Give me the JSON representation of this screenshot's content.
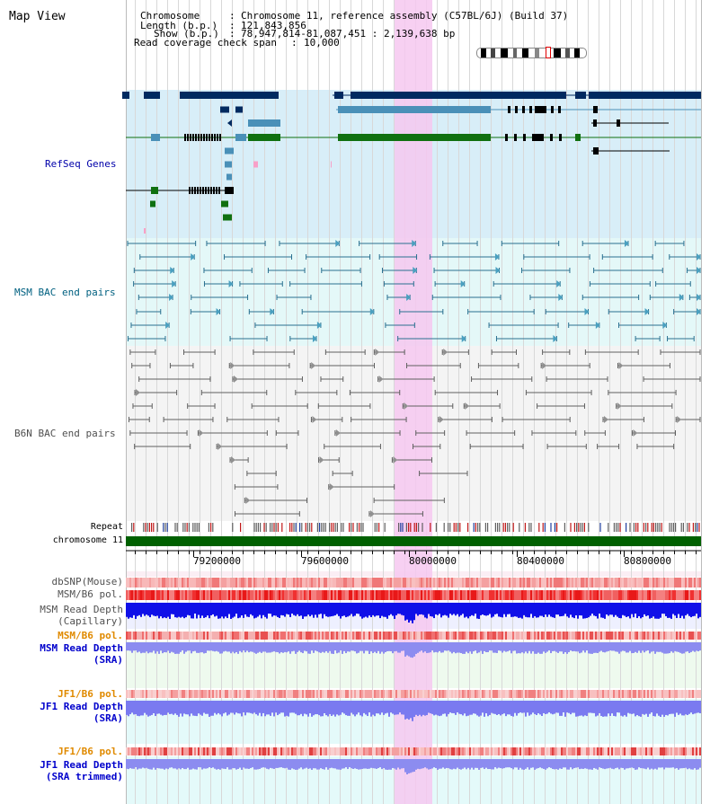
{
  "window": {
    "title": "Map View"
  },
  "header": {
    "chromosome_label": "Chromosome",
    "chromosome_value": "Chromosome 11, reference assembly (C57BL/6J) (Build 37)",
    "length_label": "Length (b.p.)",
    "length_value": "121,843,856",
    "show_label": "Show (b.p.)",
    "show_value": "78,947,814-81,087,451 : 2,139,638 bp",
    "coverage_label": "Read coverage check span",
    "coverage_value": "10,000",
    "separator": ":"
  },
  "tracks": {
    "refseq": "RefSeq Genes",
    "msm_bac": "MSM BAC end pairs",
    "b6n_bac": "B6N BAC end pairs",
    "repeat": "Repeat",
    "chromosome": "chromosome 11",
    "dbsnp": "dbSNP(Mouse)",
    "msm_b6_pol_1": "MSM/B6 pol.",
    "msm_depth_cap_1": "MSM Read Depth",
    "msm_depth_cap_2": "(Capillary)",
    "msm_b6_pol_2": "MSM/B6 pol.",
    "msm_depth_sra_1": "MSM Read Depth",
    "msm_depth_sra_2": "(SRA)",
    "jf1_b6_pol_1": "JF1/B6 pol.",
    "jf1_depth_sra_1": "JF1 Read Depth",
    "jf1_depth_sra_2": "(SRA)",
    "jf1_b6_pol_2": "JF1/B6 pol.",
    "jf1_depth_trim_1": "JF1 Read Depth",
    "jf1_depth_trim_2": "(SRA trimmed)"
  },
  "axis": {
    "ticks": [
      "79200000",
      "79600000",
      "80000000",
      "80400000",
      "80800000"
    ]
  },
  "colors": {
    "refseq_bg": "#d8eef8",
    "msm_bac_bg": "#e4f8f8",
    "b6n_bac_bg": "#f4f4f4",
    "highlight": "#f6c8f0",
    "refseq_label": "#0000aa",
    "msm_label": "#006080",
    "b6n_label": "#505050",
    "pol_label_orange": "#e08a00",
    "depth_label_blue": "#0000cc"
  }
}
